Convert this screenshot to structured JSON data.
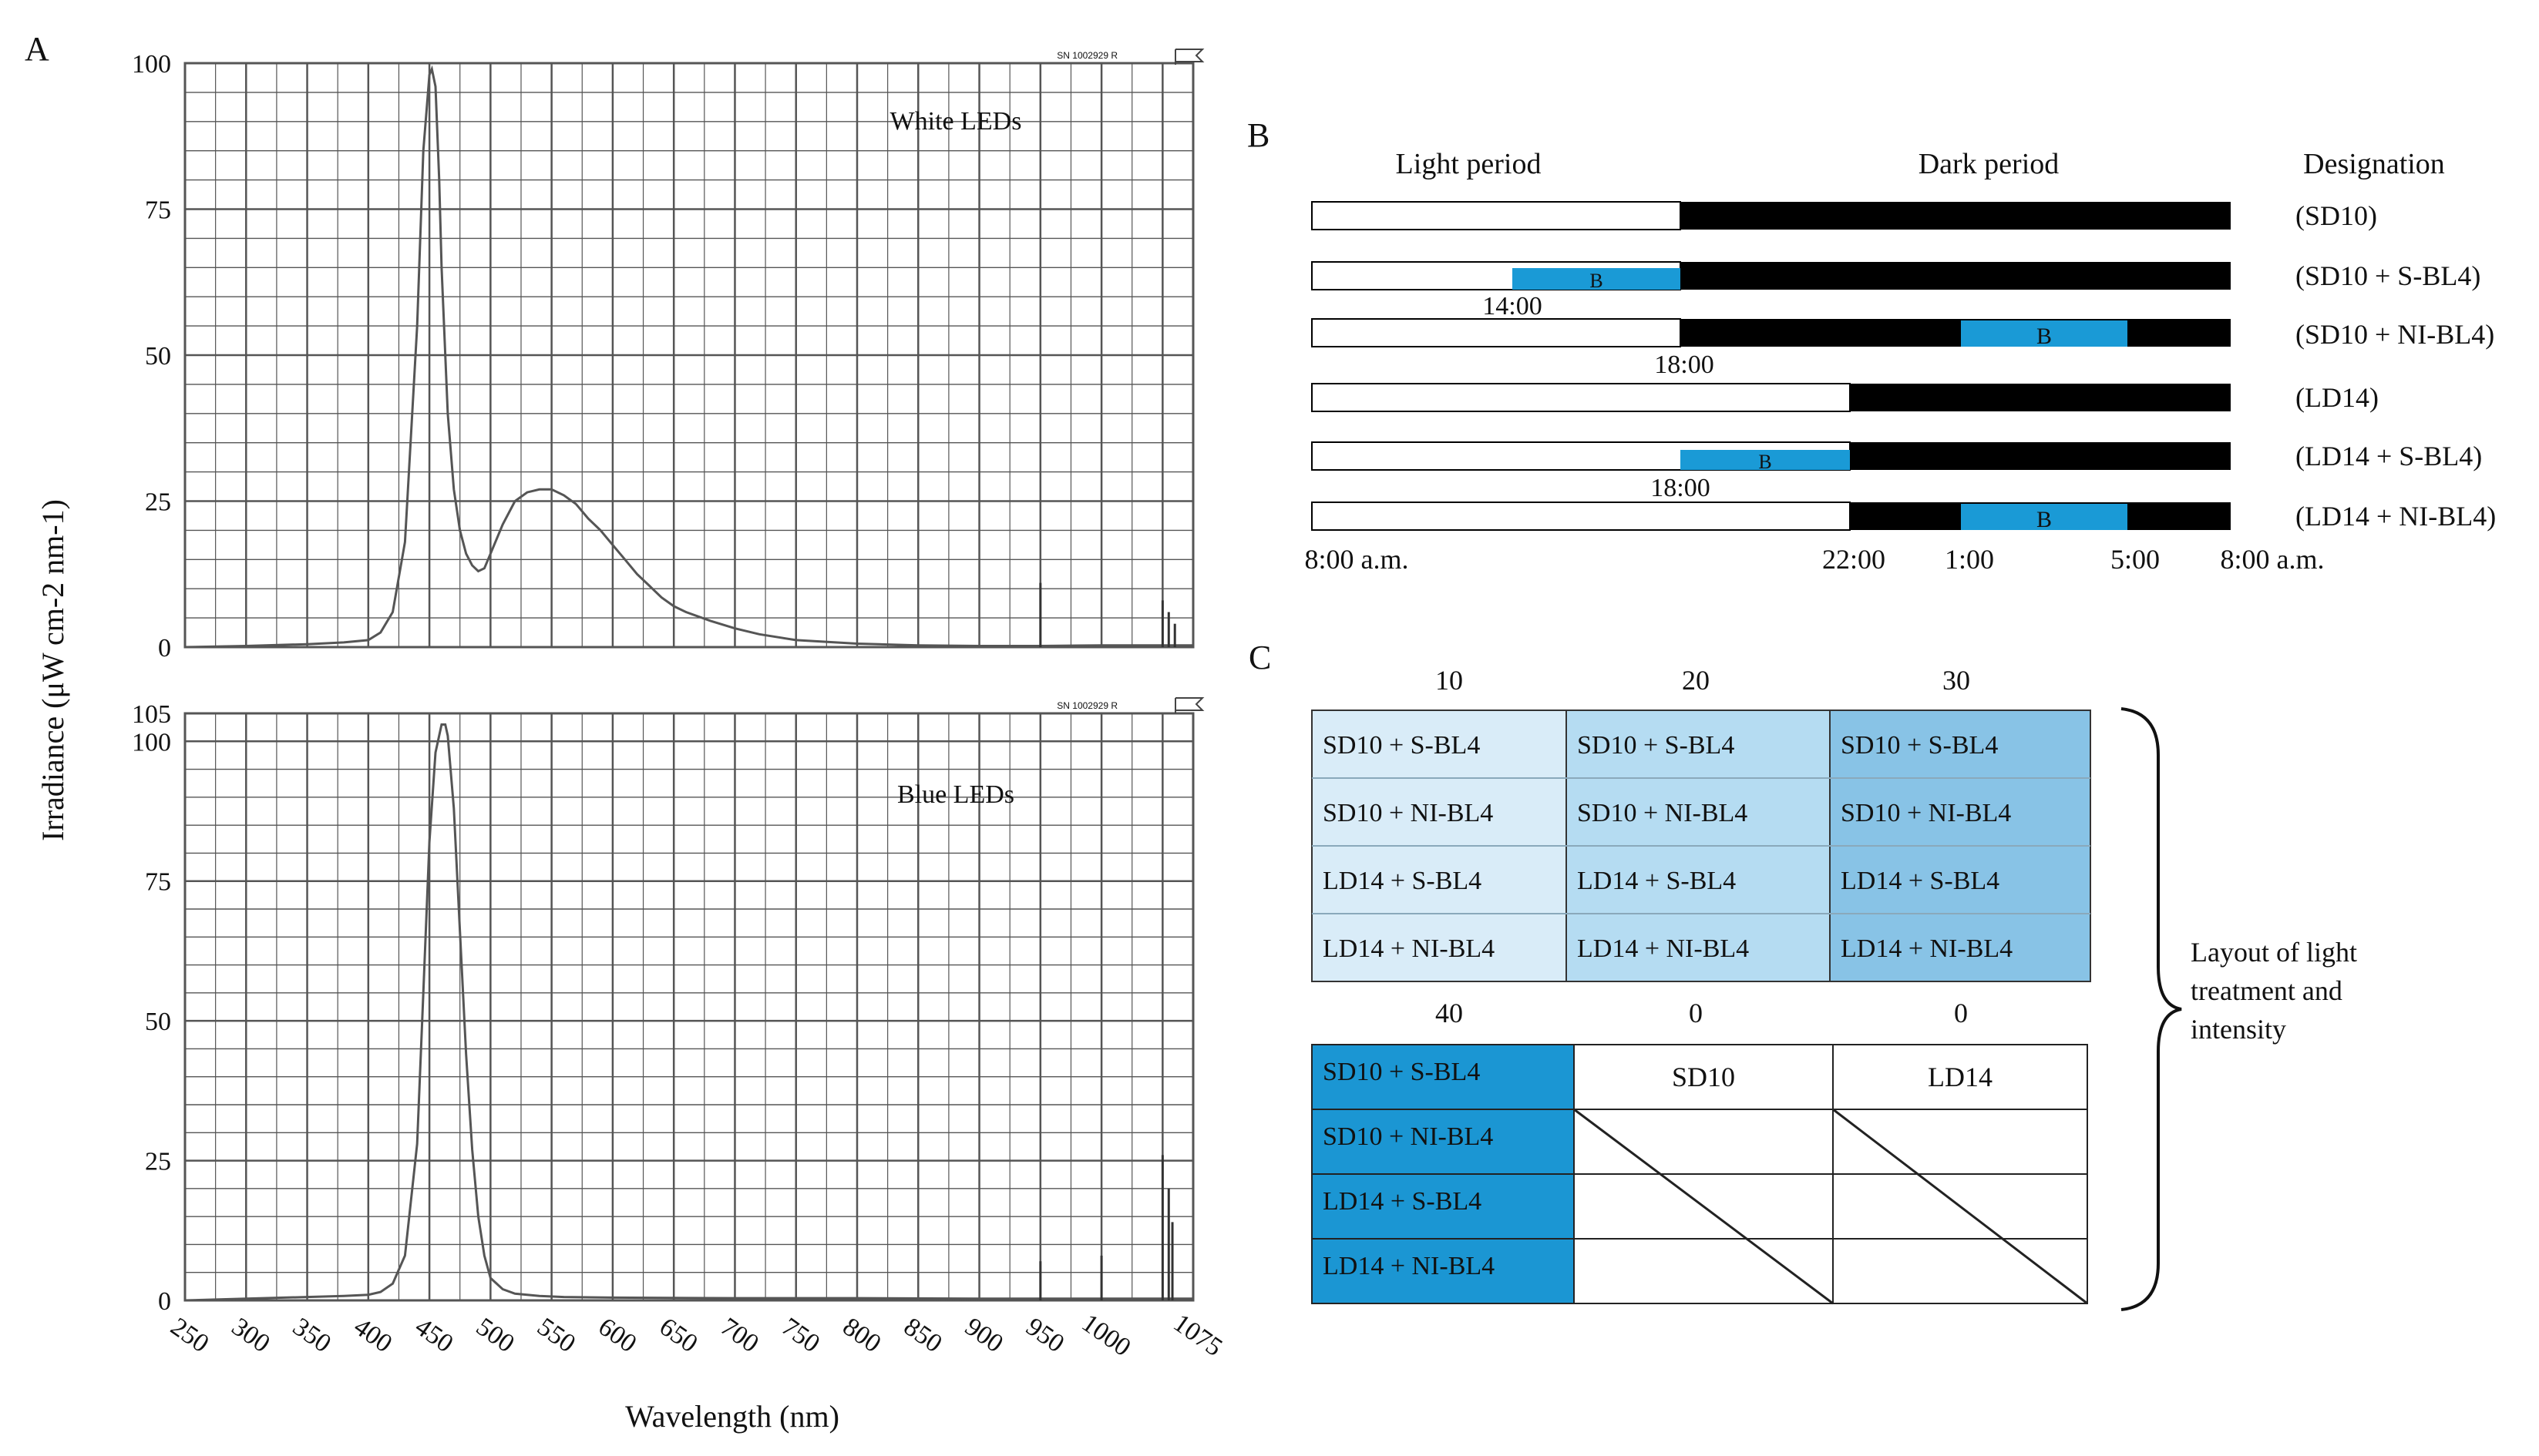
{
  "panel_labels": {
    "a": "A",
    "b": "B",
    "c": "C"
  },
  "panel_a": {
    "y_axis_label": "Irradiance (μW cm-2 nm-1)",
    "x_axis_label": "Wavelength (nm)",
    "corner_tag": "SN 1002929 R",
    "x_ticks": [
      "250",
      "300",
      "350",
      "400",
      "450",
      "500",
      "550",
      "600",
      "650",
      "700",
      "750",
      "800",
      "850",
      "900",
      "950",
      "1000",
      "1075"
    ],
    "colors": {
      "spectrum": "#555555",
      "grid": "#555555"
    }
  },
  "chart_data": [
    {
      "type": "line",
      "title": "White LEDs",
      "xlabel": "Wavelength (nm)",
      "ylabel": "Irradiance (μW cm-2 nm-1)",
      "xlim": [
        250,
        1075
      ],
      "ylim": [
        0,
        100
      ],
      "y_ticks": [
        "0",
        "25",
        "50",
        "75",
        "100"
      ],
      "grid": true,
      "series": [
        {
          "x": [
            250,
            300,
            350,
            380,
            400,
            410,
            420,
            430,
            440,
            445,
            450,
            452,
            455,
            458,
            460,
            465,
            470,
            475,
            480,
            485,
            490,
            495,
            500,
            510,
            520,
            530,
            540,
            550,
            560,
            570,
            580,
            590,
            600,
            610,
            620,
            630,
            640,
            650,
            660,
            680,
            700,
            720,
            750,
            800,
            850,
            900,
            950,
            1000,
            1075
          ],
          "y": [
            0,
            0.2,
            0.5,
            0.8,
            1.2,
            2.5,
            6,
            18,
            55,
            85,
            98,
            99,
            96,
            80,
            65,
            40,
            27,
            20,
            16,
            14,
            13,
            13.5,
            16,
            21,
            25,
            26.5,
            27,
            27,
            26,
            24.5,
            22,
            20,
            17.5,
            15,
            12.5,
            10.5,
            8.5,
            7,
            6,
            4.5,
            3.2,
            2.2,
            1.2,
            0.6,
            0.3,
            0.2,
            0.2,
            0.3,
            0.3
          ]
        }
      ],
      "noise_spikes": [
        {
          "x": 950,
          "y": 11
        },
        {
          "x": 1050,
          "y": 8
        },
        {
          "x": 1055,
          "y": 6
        },
        {
          "x": 1060,
          "y": 4
        }
      ]
    },
    {
      "type": "line",
      "title": "Blue LEDs",
      "xlabel": "Wavelength (nm)",
      "ylabel": "Irradiance (μW cm-2 nm-1)",
      "xlim": [
        250,
        1075
      ],
      "ylim": [
        0,
        105
      ],
      "y_ticks": [
        "0",
        "25",
        "50",
        "75",
        "100",
        "105"
      ],
      "grid": true,
      "series": [
        {
          "x": [
            250,
            300,
            350,
            380,
            400,
            410,
            420,
            430,
            440,
            445,
            450,
            455,
            460,
            463,
            465,
            470,
            475,
            480,
            485,
            490,
            495,
            500,
            510,
            520,
            540,
            560,
            600,
            700,
            800,
            900,
            1000,
            1075
          ],
          "y": [
            0,
            0.3,
            0.6,
            0.8,
            1,
            1.5,
            3,
            8,
            28,
            55,
            82,
            98,
            103,
            103,
            101,
            88,
            66,
            44,
            27,
            15,
            8,
            4,
            2,
            1.2,
            0.8,
            0.6,
            0.5,
            0.4,
            0.4,
            0.3,
            0.3,
            0.3
          ]
        }
      ],
      "noise_spikes": [
        {
          "x": 950,
          "y": 7
        },
        {
          "x": 1000,
          "y": 8
        },
        {
          "x": 1050,
          "y": 26
        },
        {
          "x": 1055,
          "y": 20
        },
        {
          "x": 1058,
          "y": 14
        }
      ]
    }
  ],
  "panel_b": {
    "headers": {
      "light": "Light period",
      "dark": "Dark period",
      "designation": "Designation"
    },
    "rows": [
      {
        "designation": "(SD10)",
        "blue_label": ""
      },
      {
        "designation": "(SD10 + S-BL4)",
        "blue_label": "B",
        "time_below": "14:00"
      },
      {
        "designation": "(SD10 + NI-BL4)",
        "blue_label": "B",
        "time_below": "18:00"
      },
      {
        "designation": "(LD14)",
        "blue_label": ""
      },
      {
        "designation": "(LD14 + S-BL4)",
        "blue_label": "B",
        "time_below": "18:00"
      },
      {
        "designation": "(LD14 + NI-BL4)",
        "blue_label": "B"
      }
    ],
    "time_axis": [
      "8:00 a.m.",
      "22:00",
      "1:00",
      "5:00",
      "8:00 a.m."
    ],
    "colors": {
      "blue": "#1a9ad6",
      "dark": "#000000"
    }
  },
  "panel_c": {
    "top_grid": {
      "column_headers": [
        "10",
        "20",
        "30"
      ],
      "rows": [
        [
          "SD10 + S-BL4",
          "SD10 + S-BL4",
          "SD10 + S-BL4"
        ],
        [
          "SD10 + NI-BL4",
          "SD10 + NI-BL4",
          "SD10 + NI-BL4"
        ],
        [
          "LD14 + S-BL4",
          "LD14 + S-BL4",
          "LD14 + S-BL4"
        ],
        [
          "LD14 + NI-BL4",
          "LD14 + NI-BL4",
          "LD14 + NI-BL4"
        ]
      ],
      "column_colors": [
        "#d9ecf8",
        "#b5dcf2",
        "#88c3e6"
      ]
    },
    "bottom_grid": {
      "column_headers": [
        "40",
        "0",
        "0"
      ],
      "col1_rows": [
        "SD10 + S-BL4",
        "SD10 + NI-BL4",
        "LD14 + S-BL4",
        "LD14 + NI-BL4"
      ],
      "col1_color": "#1b96d3",
      "col2_header_cell": "SD10",
      "col3_header_cell": "LD14"
    },
    "brace_note": [
      "Layout of light",
      "treatment and",
      "intensity"
    ]
  }
}
